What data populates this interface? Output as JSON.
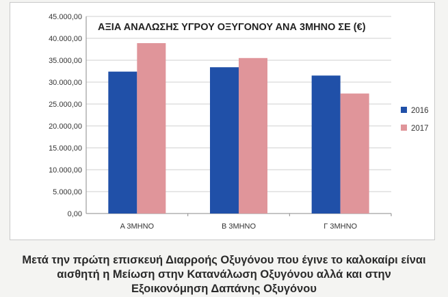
{
  "chart_data": {
    "type": "bar",
    "title": "ΑΞΙΑ ΑΝΑΛΩΣΗΣ ΥΓΡΟΥ ΟΞΥΓΟΝΟΥ ΑΝΑ 3ΜΗΝΟ ΣΕ (€)",
    "categories": [
      "Α 3ΜΗΝΟ",
      "Β 3ΜΗΝΟ",
      "Γ 3ΜΗΝΟ"
    ],
    "series": [
      {
        "name": "2016",
        "color": "#2050a8",
        "values": [
          32400,
          33400,
          31500
        ]
      },
      {
        "name": "2017",
        "color": "#e0959a",
        "values": [
          38900,
          35500,
          27400
        ]
      }
    ],
    "y_ticks": [
      "0,00",
      "5.000,00",
      "10.000,00",
      "15.000,00",
      "20.000,00",
      "25.000,00",
      "30.000,00",
      "35.000,00",
      "40.000,00",
      "45.000,00"
    ],
    "ylim": [
      0,
      45000
    ],
    "xlabel": "",
    "ylabel": "",
    "grid": true,
    "legend_position": "right"
  },
  "caption_lines": [
    "Μετά την πρώτη επισκευή Διαρροής Οξυγόνου που έγινε το καλοκαίρι είναι",
    "αισθητή η Μείωση στην Κατανάλωση Οξυγόνου αλλά και στην",
    "Εξοικονόμηση Δαπάνης Οξυγόνου"
  ]
}
